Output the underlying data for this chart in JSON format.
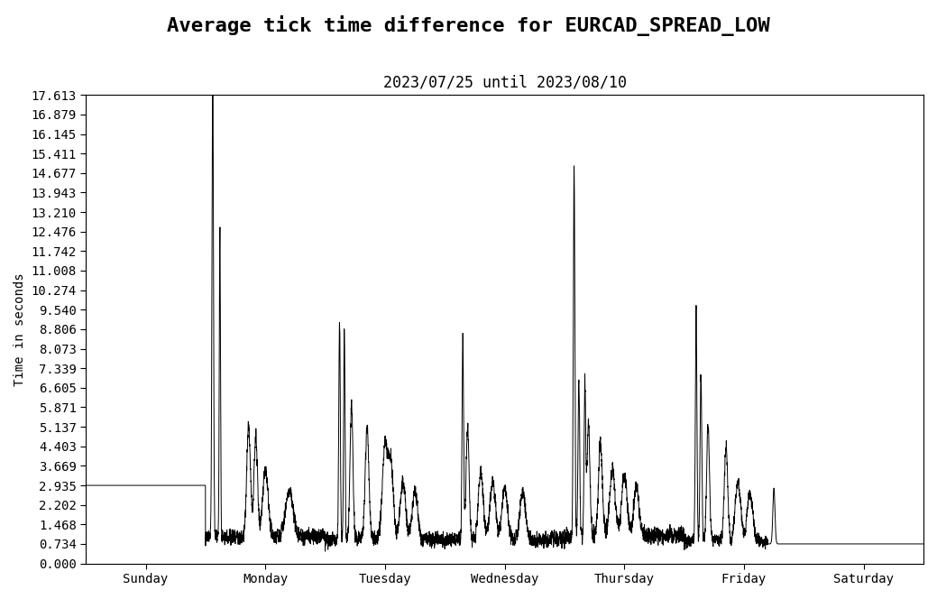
{
  "title": "Average tick time difference for EURCAD_SPREAD_LOW",
  "subtitle": "2023/07/25 until 2023/08/10",
  "ylabel": "Time in seconds",
  "yticks": [
    0.0,
    0.734,
    1.468,
    2.202,
    2.935,
    3.669,
    4.403,
    5.137,
    5.871,
    6.605,
    7.339,
    8.073,
    8.806,
    9.54,
    10.274,
    11.008,
    11.742,
    12.476,
    13.21,
    13.943,
    14.677,
    15.411,
    16.145,
    16.879,
    17.613
  ],
  "xtick_labels": [
    "Sunday",
    "Monday",
    "Tuesday",
    "Wednesday",
    "Thursday",
    "Friday",
    "Saturday"
  ],
  "ylim": [
    0.0,
    17.613
  ],
  "line_color": "#000000",
  "line_width": 0.7,
  "background_color": "#ffffff",
  "title_fontsize": 16,
  "subtitle_fontsize": 12,
  "font_family": "DejaVu Sans Mono",
  "flat_value_sun": 2.935,
  "flat_value_sat": 0.734,
  "n_points": 10000
}
